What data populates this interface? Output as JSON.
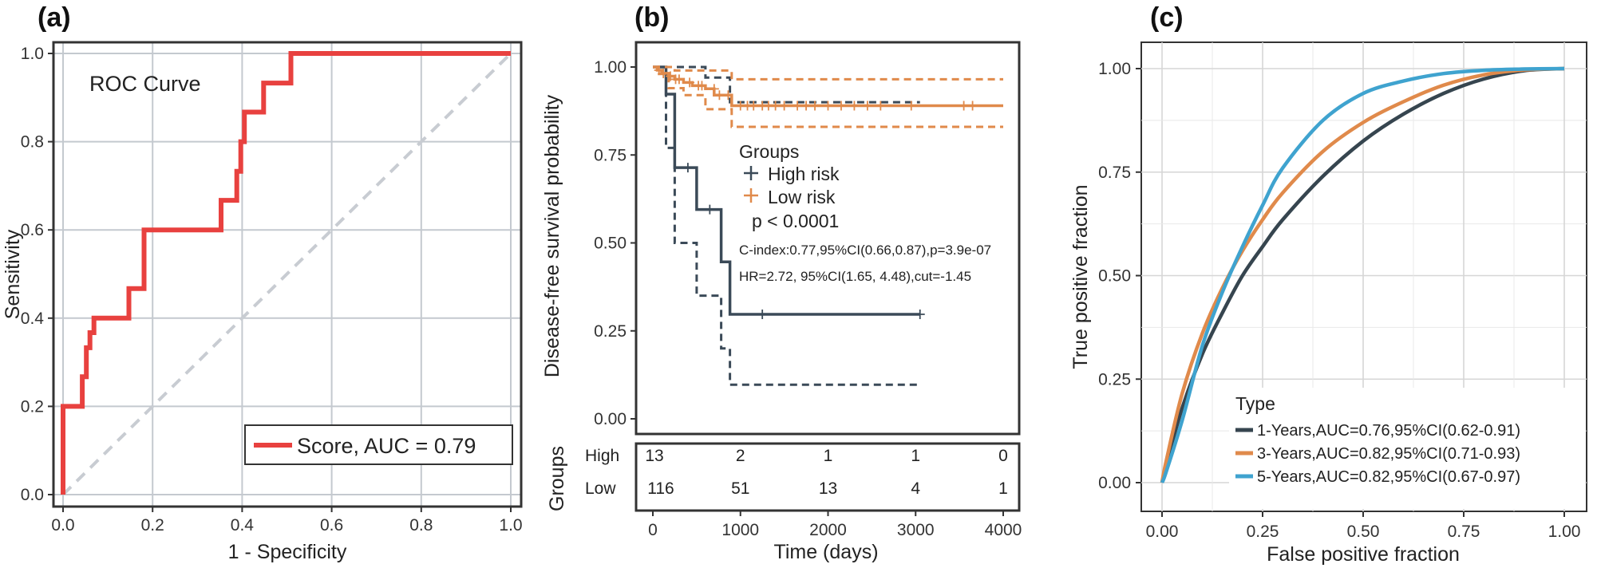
{
  "chart_data": [
    {
      "panel": "(a)",
      "type": "line",
      "title": "ROC Curve",
      "xlabel": "1 - Specificity",
      "ylabel": "Sensitivity",
      "xlim": [
        0,
        1
      ],
      "ylim": [
        0,
        1
      ],
      "xticks": [
        "0.0",
        "0.2",
        "0.4",
        "0.6",
        "0.8",
        "1.0"
      ],
      "yticks": [
        "0.0",
        "0.2",
        "0.4",
        "0.6",
        "0.8",
        "1.0"
      ],
      "grid": true,
      "legend_position": "bottom-right",
      "series": [
        {
          "name": "Score, AUC = 0.79",
          "color": "#e8413f",
          "x": [
            0,
            0,
            0.043,
            0.043,
            0.052,
            0.052,
            0.06,
            0.06,
            0.069,
            0.069,
            0.147,
            0.147,
            0.181,
            0.181,
            0.353,
            0.353,
            0.388,
            0.388,
            0.397,
            0.397,
            0.405,
            0.405,
            0.448,
            0.448,
            0.509,
            0.509,
            1.0
          ],
          "y": [
            0,
            0.2,
            0.2,
            0.267,
            0.267,
            0.333,
            0.333,
            0.367,
            0.367,
            0.4,
            0.4,
            0.467,
            0.467,
            0.6,
            0.6,
            0.667,
            0.667,
            0.733,
            0.733,
            0.8,
            0.8,
            0.867,
            0.867,
            0.933,
            0.933,
            1.0,
            1.0
          ]
        },
        {
          "name": "reference",
          "color": "#c8ccd2",
          "x": [
            0,
            1
          ],
          "y": [
            0,
            1
          ]
        }
      ]
    },
    {
      "panel": "(b)",
      "type": "line",
      "xlabel": "Time (days)",
      "ylabel": "Disease-free survival probability",
      "xlim": [
        0,
        4000
      ],
      "ylim": [
        0,
        1
      ],
      "xticks": [
        "0",
        "1000",
        "2000",
        "3000",
        "4000"
      ],
      "yticks": [
        "0.00",
        "0.25",
        "0.50",
        "0.75",
        "1.00"
      ],
      "legend_title": "Groups",
      "legend": [
        "High risk",
        "Low  risk"
      ],
      "annotations": [
        "p < 0.0001",
        "C-index:0.77,95%CI(0.66,0.87),p=3.9e-07",
        "HR=2.72, 95%CI(1.65, 4.48),cut=-1.45"
      ],
      "series": [
        {
          "name": "High risk",
          "color": "#3b4a58",
          "x": [
            0,
            150,
            150,
            250,
            250,
            500,
            500,
            780,
            780,
            880,
            880,
            3050
          ],
          "y": [
            1,
            1,
            0.923,
            0.923,
            0.714,
            0.714,
            0.595,
            0.595,
            0.446,
            0.446,
            0.297,
            0.297
          ],
          "ci_lower_x": [
            0,
            150,
            150,
            250,
            250,
            500,
            500,
            780,
            780,
            880,
            880,
            3050
          ],
          "ci_lower_y": [
            1,
            1,
            0.77,
            0.77,
            0.5,
            0.5,
            0.35,
            0.35,
            0.2,
            0.2,
            0.097,
            0.097
          ],
          "ci_upper_x": [
            0,
            600,
            600,
            880,
            880,
            3050
          ],
          "ci_upper_y": [
            1,
            1,
            0.97,
            0.97,
            0.9,
            0.9
          ],
          "censor_x": [
            400,
            650,
            1250,
            3050
          ],
          "censor_y": [
            0.714,
            0.595,
            0.297,
            0.297
          ]
        },
        {
          "name": "Low  risk",
          "color": "#e08a4b",
          "x": [
            0,
            50,
            50,
            100,
            100,
            180,
            180,
            250,
            250,
            350,
            350,
            450,
            450,
            600,
            600,
            700,
            700,
            900,
            900,
            4000
          ],
          "y": [
            1,
            1,
            0.991,
            0.991,
            0.982,
            0.982,
            0.974,
            0.974,
            0.965,
            0.965,
            0.956,
            0.956,
            0.947,
            0.947,
            0.938,
            0.938,
            0.92,
            0.92,
            0.89,
            0.89
          ],
          "ci_lower_x": [
            0,
            50,
            50,
            180,
            180,
            350,
            350,
            600,
            600,
            900,
            900,
            4000
          ],
          "ci_lower_y": [
            1,
            1,
            0.98,
            0.98,
            0.94,
            0.94,
            0.92,
            0.92,
            0.88,
            0.88,
            0.83,
            0.83
          ],
          "ci_upper_x": [
            0,
            250,
            250,
            900,
            900,
            4000
          ],
          "ci_upper_y": [
            1,
            1,
            0.99,
            0.99,
            0.965,
            0.965
          ],
          "censor_x": [
            70,
            120,
            200,
            260,
            300,
            420,
            520,
            560,
            700,
            760,
            860,
            1000,
            1080,
            1150,
            1250,
            1320,
            1400,
            1500,
            1650,
            1750,
            1850,
            2000,
            2150,
            2300,
            2450,
            2600,
            2950,
            3550,
            3650
          ],
          "censor_y": [
            0.991,
            0.982,
            0.974,
            0.965,
            0.965,
            0.956,
            0.947,
            0.947,
            0.938,
            0.92,
            0.92,
            0.89,
            0.89,
            0.89,
            0.89,
            0.89,
            0.89,
            0.89,
            0.89,
            0.89,
            0.89,
            0.89,
            0.89,
            0.89,
            0.89,
            0.89,
            0.89,
            0.89,
            0.89
          ]
        }
      ],
      "risk_table": {
        "title": "Groups",
        "rows": [
          {
            "label": "High",
            "color": "#3b4a58",
            "values": [
              "13",
              "2",
              "1",
              "1",
              "0"
            ]
          },
          {
            "label": "Low",
            "color": "#e08a4b",
            "values": [
              "116",
              "51",
              "13",
              "4",
              "1"
            ]
          }
        ]
      }
    },
    {
      "panel": "(c)",
      "type": "line",
      "xlabel": "False positive fraction",
      "ylabel": "True positive fraction",
      "xlim": [
        0,
        1
      ],
      "ylim": [
        0,
        1
      ],
      "xticks": [
        "0.00",
        "0.25",
        "0.50",
        "0.75",
        "1.00"
      ],
      "yticks": [
        "0.00",
        "0.25",
        "0.50",
        "0.75",
        "1.00"
      ],
      "grid": true,
      "legend_title": "Type",
      "legend_position": "bottom-right",
      "series": [
        {
          "name": "1-Years,AUC=0.76,95%CI(0.62-0.91)",
          "color": "#36454f",
          "x": [
            0,
            0.01,
            0.05,
            0.1,
            0.15,
            0.2,
            0.25,
            0.3,
            0.4,
            0.5,
            0.6,
            0.7,
            0.8,
            0.9,
            1.0
          ],
          "y": [
            0,
            0.04,
            0.18,
            0.31,
            0.41,
            0.5,
            0.57,
            0.635,
            0.74,
            0.825,
            0.89,
            0.94,
            0.975,
            0.995,
            1.0
          ]
        },
        {
          "name": "3-Years,AUC=0.82,95%CI(0.71-0.93)",
          "color": "#e08a4b",
          "x": [
            0,
            0.01,
            0.05,
            0.1,
            0.15,
            0.2,
            0.25,
            0.3,
            0.4,
            0.5,
            0.6,
            0.7,
            0.8,
            0.9,
            1.0
          ],
          "y": [
            0,
            0.05,
            0.215,
            0.36,
            0.47,
            0.56,
            0.635,
            0.7,
            0.8,
            0.87,
            0.92,
            0.96,
            0.985,
            0.997,
            1.0
          ]
        },
        {
          "name": "5-Years,AUC=0.82,95%CI(0.67-0.97)",
          "color": "#3fa3cf",
          "x": [
            0,
            0.01,
            0.05,
            0.1,
            0.15,
            0.2,
            0.25,
            0.3,
            0.4,
            0.5,
            0.6,
            0.7,
            0.8,
            0.9,
            1.0
          ],
          "y": [
            0,
            0.025,
            0.15,
            0.33,
            0.46,
            0.57,
            0.67,
            0.76,
            0.875,
            0.94,
            0.97,
            0.988,
            0.996,
            0.999,
            1.0
          ]
        }
      ]
    }
  ]
}
